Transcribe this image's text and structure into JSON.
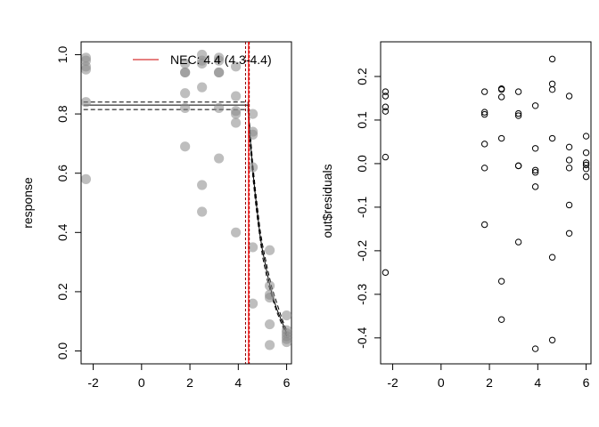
{
  "chart_data": [
    {
      "type": "scatter",
      "title": "",
      "xlabel": "",
      "ylabel": "response",
      "xlim": [
        -2.5,
        6.2
      ],
      "ylim": [
        0.0,
        1.0
      ],
      "xticks": [
        "-2",
        "0",
        "2",
        "4",
        "6"
      ],
      "xtick_values": [
        -2,
        0,
        2,
        4,
        6
      ],
      "yticks": [
        "0.0",
        "0.2",
        "0.4",
        "0.6",
        "0.8",
        "1.0"
      ],
      "ytick_values": [
        0,
        0.2,
        0.4,
        0.6,
        0.8,
        1.0
      ],
      "grid": false,
      "legend": {
        "position": "top-right",
        "entries": [
          "NEC: 4.4 (4.3-4.4)"
        ]
      },
      "points": {
        "x": [
          -2.3,
          -2.3,
          -2.3,
          -2.3,
          -2.3,
          -2.3,
          1.8,
          1.8,
          1.8,
          1.8,
          1.8,
          1.8,
          2.5,
          2.5,
          2.5,
          2.5,
          2.5,
          2.5,
          3.2,
          3.2,
          3.2,
          3.2,
          3.2,
          3.2,
          3.9,
          3.9,
          3.9,
          3.9,
          3.9,
          3.9,
          4.6,
          4.6,
          4.6,
          4.6,
          4.6,
          4.6,
          5.3,
          5.3,
          5.3,
          5.3,
          5.3,
          5.3,
          6.0,
          6.0,
          6.0,
          6.0,
          6.0,
          6.0
        ],
        "y": [
          0.99,
          0.98,
          0.95,
          0.84,
          0.58,
          0.96,
          0.94,
          0.94,
          0.87,
          0.82,
          0.69,
          0.97,
          1.0,
          0.97,
          0.89,
          0.56,
          0.47,
          0.98,
          0.99,
          0.94,
          0.82,
          0.65,
          0.98,
          0.94,
          0.96,
          0.86,
          0.81,
          0.8,
          0.77,
          0.4,
          0.8,
          0.74,
          0.73,
          0.62,
          0.35,
          0.16,
          0.34,
          0.22,
          0.19,
          0.18,
          0.09,
          0.02,
          0.12,
          0.07,
          0.05,
          0.04,
          0.03,
          0.06
        ]
      },
      "nec": {
        "estimate": 4.4,
        "lower": 4.3,
        "upper": 4.4
      },
      "fit": {
        "x": [
          -2.4,
          4.4,
          4.5,
          4.6,
          4.7,
          4.8,
          4.9,
          5.0,
          5.2,
          5.4,
          5.6,
          5.8,
          6.0
        ],
        "y": [
          0.83,
          0.83,
          0.71,
          0.61,
          0.53,
          0.46,
          0.39,
          0.34,
          0.26,
          0.19,
          0.14,
          0.1,
          0.06
        ],
        "lower": [
          0.815,
          0.815,
          0.69,
          0.59,
          0.51,
          0.44,
          0.38,
          0.32,
          0.24,
          0.18,
          0.13,
          0.09,
          0.05
        ],
        "upper": [
          0.84,
          0.84,
          0.73,
          0.63,
          0.55,
          0.48,
          0.41,
          0.36,
          0.28,
          0.21,
          0.16,
          0.11,
          0.07
        ]
      },
      "colors": {
        "points": "#888888",
        "fit": "#000000",
        "nec_line": "#ff0000",
        "nec_ci": "#8b0000"
      }
    },
    {
      "type": "scatter",
      "title": "",
      "xlabel": "",
      "ylabel": "out$residuals",
      "xlim": [
        -2.5,
        6.2
      ],
      "ylim": [
        -0.43,
        0.25
      ],
      "xticks": [
        "-2",
        "0",
        "2",
        "4",
        "6"
      ],
      "xtick_values": [
        -2,
        0,
        2,
        4,
        6
      ],
      "yticks": [
        "-0.4",
        "-0.3",
        "-0.2",
        "-0.1",
        "0.0",
        "0.1",
        "0.2"
      ],
      "ytick_values": [
        -0.4,
        -0.3,
        -0.2,
        -0.1,
        0.0,
        0.1,
        0.2
      ],
      "grid": false,
      "points": {
        "x": [
          -2.3,
          -2.3,
          -2.3,
          -2.3,
          -2.3,
          -2.3,
          1.8,
          1.8,
          1.8,
          1.8,
          1.8,
          1.8,
          2.5,
          2.5,
          2.5,
          2.5,
          2.5,
          2.5,
          3.2,
          3.2,
          3.2,
          3.2,
          3.2,
          3.2,
          3.9,
          3.9,
          3.9,
          3.9,
          3.9,
          3.9,
          4.6,
          4.6,
          4.6,
          4.6,
          4.6,
          4.6,
          5.3,
          5.3,
          5.3,
          5.3,
          5.3,
          5.3,
          6.0,
          6.0,
          6.0,
          6.0,
          6.0,
          6.0
        ],
        "y": [
          0.165,
          0.155,
          0.13,
          0.12,
          0.015,
          -0.25,
          0.165,
          0.118,
          0.113,
          0.045,
          -0.01,
          -0.14,
          0.172,
          0.153,
          0.058,
          -0.27,
          -0.358,
          0.17,
          0.165,
          0.115,
          0.11,
          -0.005,
          -0.005,
          -0.18,
          0.133,
          0.035,
          -0.015,
          -0.02,
          -0.053,
          -0.425,
          0.24,
          0.183,
          0.17,
          0.058,
          -0.215,
          -0.405,
          0.155,
          0.038,
          0.008,
          -0.01,
          -0.095,
          -0.16,
          0.063,
          0.025,
          0.002,
          -0.003,
          -0.012,
          -0.03
        ]
      }
    }
  ]
}
